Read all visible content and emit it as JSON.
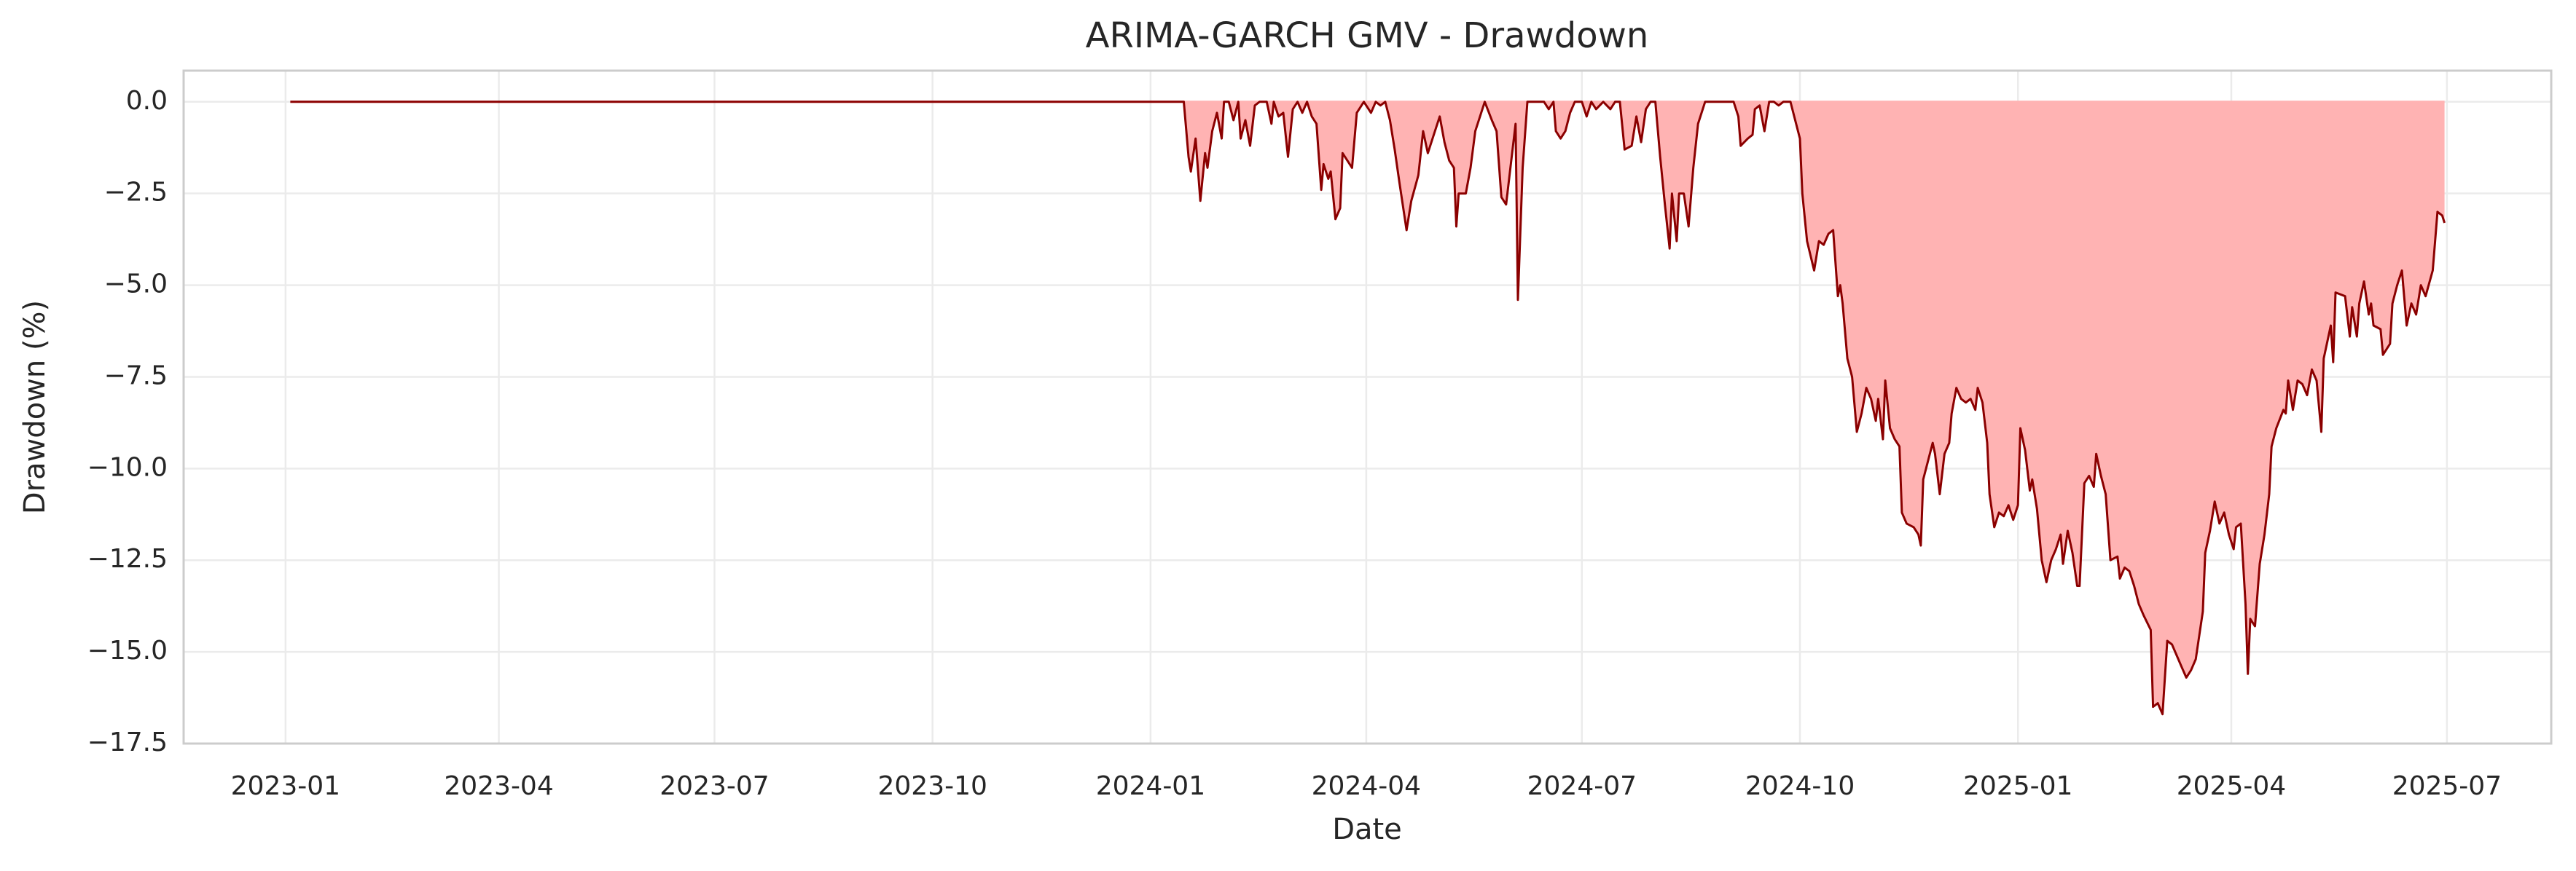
{
  "chart_data": {
    "type": "area",
    "title": "ARIMA-GARCH GMV - Drawdown",
    "x_label": "Date",
    "y_label": "Drawdown (%)",
    "xlim": [
      "2022-11-19",
      "2025-08-14"
    ],
    "xticks": [
      "2023-01",
      "2023-04",
      "2023-07",
      "2023-10",
      "2024-01",
      "2024-04",
      "2024-07",
      "2024-10",
      "2025-01",
      "2025-04",
      "2025-07"
    ],
    "ylim": [
      -17.5,
      0.85
    ],
    "yticks": [
      {
        "value": 0,
        "label": "0.0"
      },
      {
        "value": -2.5,
        "label": "−2.5"
      },
      {
        "value": -5,
        "label": "−5.0"
      },
      {
        "value": -7.5,
        "label": "−7.5"
      },
      {
        "value": -10,
        "label": "−10.0"
      },
      {
        "value": -12.5,
        "label": "−12.5"
      },
      {
        "value": -15,
        "label": "−15.0"
      },
      {
        "value": -17.5,
        "label": "−17.5"
      }
    ],
    "grid": true,
    "x": [
      "2023-01-03",
      "2024-01-15",
      "2024-01-17",
      "2024-01-18",
      "2024-01-20",
      "2024-01-22",
      "2024-01-24",
      "2024-01-25",
      "2024-01-27",
      "2024-01-29",
      "2024-01-31",
      "2024-02-01",
      "2024-02-03",
      "2024-02-05",
      "2024-02-07",
      "2024-02-08",
      "2024-02-10",
      "2024-02-12",
      "2024-02-14",
      "2024-02-16",
      "2024-02-19",
      "2024-02-21",
      "2024-02-22",
      "2024-02-24",
      "2024-02-26",
      "2024-02-28",
      "2024-03-01",
      "2024-03-03",
      "2024-03-05",
      "2024-03-07",
      "2024-03-09",
      "2024-03-11",
      "2024-03-13",
      "2024-03-14",
      "2024-03-16",
      "2024-03-17",
      "2024-03-19",
      "2024-03-21",
      "2024-03-22",
      "2024-03-26",
      "2024-03-28",
      "2024-03-31",
      "2024-04-03",
      "2024-04-05",
      "2024-04-07",
      "2024-04-09",
      "2024-04-11",
      "2024-04-13",
      "2024-04-15",
      "2024-04-18",
      "2024-04-20",
      "2024-04-23",
      "2024-04-25",
      "2024-04-27",
      "2024-04-29",
      "2024-05-02",
      "2024-05-04",
      "2024-05-06",
      "2024-05-08",
      "2024-05-09",
      "2024-05-10",
      "2024-05-13",
      "2024-05-15",
      "2024-05-17",
      "2024-05-19",
      "2024-05-21",
      "2024-05-24",
      "2024-05-26",
      "2024-05-28",
      "2024-05-30",
      "2024-06-01",
      "2024-06-03",
      "2024-06-04",
      "2024-06-06",
      "2024-06-08",
      "2024-06-11",
      "2024-06-15",
      "2024-06-17",
      "2024-06-19",
      "2024-06-20",
      "2024-06-22",
      "2024-06-24",
      "2024-06-26",
      "2024-06-28",
      "2024-07-01",
      "2024-07-03",
      "2024-07-05",
      "2024-07-07",
      "2024-07-10",
      "2024-07-13",
      "2024-07-15",
      "2024-07-17",
      "2024-07-19",
      "2024-07-22",
      "2024-07-24",
      "2024-07-26",
      "2024-07-28",
      "2024-07-30",
      "2024-08-01",
      "2024-08-03",
      "2024-08-05",
      "2024-08-07",
      "2024-08-08",
      "2024-08-10",
      "2024-08-11",
      "2024-08-13",
      "2024-08-15",
      "2024-08-17",
      "2024-08-19",
      "2024-08-22",
      "2024-08-27",
      "2024-09-03",
      "2024-09-05",
      "2024-09-06",
      "2024-09-09",
      "2024-09-11",
      "2024-09-12",
      "2024-09-14",
      "2024-09-16",
      "2024-09-18",
      "2024-09-20",
      "2024-09-22",
      "2024-09-24",
      "2024-09-27",
      "2024-10-01",
      "2024-10-02",
      "2024-10-04",
      "2024-10-07",
      "2024-10-09",
      "2024-10-11",
      "2024-10-13",
      "2024-10-15",
      "2024-10-17",
      "2024-10-18",
      "2024-10-19",
      "2024-10-21",
      "2024-10-23",
      "2024-10-25",
      "2024-10-27",
      "2024-10-29",
      "2024-10-31",
      "2024-11-02",
      "2024-11-03",
      "2024-11-05",
      "2024-11-06",
      "2024-11-08",
      "2024-11-10",
      "2024-11-12",
      "2024-11-13",
      "2024-11-15",
      "2024-11-18",
      "2024-11-20",
      "2024-11-21",
      "2024-11-22",
      "2024-11-24",
      "2024-11-26",
      "2024-11-27",
      "2024-11-29",
      "2024-12-01",
      "2024-12-03",
      "2024-12-04",
      "2024-12-06",
      "2024-12-08",
      "2024-12-10",
      "2024-12-12",
      "2024-12-14",
      "2024-12-15",
      "2024-12-17",
      "2024-12-19",
      "2024-12-20",
      "2024-12-22",
      "2024-12-24",
      "2024-12-26",
      "2024-12-28",
      "2024-12-30",
      "2025-01-01",
      "2025-01-02",
      "2025-01-04",
      "2025-01-06",
      "2025-01-07",
      "2025-01-09",
      "2025-01-11",
      "2025-01-13",
      "2025-01-15",
      "2025-01-17",
      "2025-01-19",
      "2025-01-20",
      "2025-01-22",
      "2025-01-24",
      "2025-01-26",
      "2025-01-27",
      "2025-01-29",
      "2025-01-31",
      "2025-02-02",
      "2025-02-03",
      "2025-02-05",
      "2025-02-07",
      "2025-02-09",
      "2025-02-12",
      "2025-02-13",
      "2025-02-15",
      "2025-02-17",
      "2025-02-19",
      "2025-02-21",
      "2025-02-23",
      "2025-02-26",
      "2025-02-27",
      "2025-03-01",
      "2025-03-03",
      "2025-03-05",
      "2025-03-07",
      "2025-03-09",
      "2025-03-11",
      "2025-03-13",
      "2025-03-15",
      "2025-03-17",
      "2025-03-20",
      "2025-03-21",
      "2025-03-23",
      "2025-03-25",
      "2025-03-27",
      "2025-03-29",
      "2025-03-31",
      "2025-04-02",
      "2025-04-03",
      "2025-04-05",
      "2025-04-07",
      "2025-04-08",
      "2025-04-09",
      "2025-04-11",
      "2025-04-13",
      "2025-04-15",
      "2025-04-17",
      "2025-04-18",
      "2025-04-20",
      "2025-04-23",
      "2025-04-24",
      "2025-04-25",
      "2025-04-27",
      "2025-04-29",
      "2025-05-01",
      "2025-05-03",
      "2025-05-05",
      "2025-05-07",
      "2025-05-09",
      "2025-05-10",
      "2025-05-13",
      "2025-05-14",
      "2025-05-15",
      "2025-05-19",
      "2025-05-21",
      "2025-05-22",
      "2025-05-24",
      "2025-05-25",
      "2025-05-27",
      "2025-05-29",
      "2025-05-30",
      "2025-05-31",
      "2025-06-03",
      "2025-06-04",
      "2025-06-07",
      "2025-06-08",
      "2025-06-10",
      "2025-06-12",
      "2025-06-14",
      "2025-06-16",
      "2025-06-18",
      "2025-06-20",
      "2025-06-22",
      "2025-06-25",
      "2025-06-27",
      "2025-06-29",
      "2025-06-30"
    ],
    "values": [
      0,
      0,
      -1.5,
      -1.9,
      -1.0,
      -2.7,
      -1.4,
      -1.8,
      -0.8,
      -0.3,
      -1.0,
      0,
      0,
      -0.5,
      0,
      -1.0,
      -0.5,
      -1.2,
      -0.1,
      0,
      0,
      -0.6,
      0,
      -0.4,
      -0.3,
      -1.5,
      -0.2,
      0,
      -0.3,
      0,
      -0.4,
      -0.6,
      -2.4,
      -1.7,
      -2.1,
      -1.9,
      -3.2,
      -2.9,
      -1.4,
      -1.8,
      -0.3,
      0,
      -0.3,
      0,
      -0.1,
      0,
      -0.5,
      -1.3,
      -2.2,
      -3.5,
      -2.7,
      -2.0,
      -0.8,
      -1.4,
      -1.0,
      -0.4,
      -1.1,
      -1.6,
      -1.8,
      -3.4,
      -2.5,
      -2.5,
      -1.8,
      -0.8,
      -0.4,
      0,
      -0.5,
      -0.8,
      -2.6,
      -2.8,
      -1.7,
      -0.6,
      -5.4,
      -1.8,
      0,
      0,
      0,
      -0.2,
      0,
      -0.8,
      -1.0,
      -0.8,
      -0.3,
      0,
      0,
      -0.4,
      0,
      -0.2,
      0,
      -0.2,
      0,
      0,
      -1.3,
      -1.2,
      -0.4,
      -1.1,
      -0.2,
      0,
      0,
      -1.5,
      -2.8,
      -4.0,
      -2.5,
      -3.8,
      -2.5,
      -2.5,
      -3.4,
      -1.8,
      -0.6,
      0,
      0,
      0,
      -0.4,
      -1.2,
      -1.0,
      -0.9,
      -0.2,
      -0.1,
      -0.8,
      0,
      0,
      -0.1,
      0,
      0,
      -1.0,
      -2.5,
      -3.8,
      -4.6,
      -3.8,
      -3.9,
      -3.6,
      -3.5,
      -5.3,
      -5.0,
      -5.5,
      -7.0,
      -7.5,
      -9.0,
      -8.5,
      -7.8,
      -8.1,
      -8.7,
      -8.1,
      -9.2,
      -7.6,
      -8.9,
      -9.2,
      -9.4,
      -11.2,
      -11.5,
      -11.6,
      -11.8,
      -12.1,
      -10.3,
      -9.8,
      -9.3,
      -9.6,
      -10.7,
      -9.6,
      -9.3,
      -8.5,
      -7.8,
      -8.1,
      -8.2,
      -8.1,
      -8.4,
      -7.8,
      -8.2,
      -9.3,
      -10.7,
      -11.6,
      -11.2,
      -11.3,
      -11.0,
      -11.4,
      -11.0,
      -8.9,
      -9.5,
      -10.6,
      -10.3,
      -11.1,
      -12.5,
      -13.1,
      -12.5,
      -12.2,
      -11.8,
      -12.6,
      -11.7,
      -12.3,
      -13.2,
      -13.2,
      -10.4,
      -10.2,
      -10.5,
      -9.6,
      -10.2,
      -10.7,
      -12.5,
      -12.4,
      -13.0,
      -12.7,
      -12.8,
      -13.2,
      -13.7,
      -14.0,
      -14.4,
      -16.5,
      -16.4,
      -16.7,
      -14.7,
      -14.8,
      -15.1,
      -15.4,
      -15.7,
      -15.5,
      -15.2,
      -13.9,
      -12.3,
      -11.7,
      -10.9,
      -11.5,
      -11.2,
      -11.8,
      -12.2,
      -11.6,
      -11.5,
      -13.7,
      -15.6,
      -14.1,
      -14.3,
      -12.6,
      -11.8,
      -10.7,
      -9.4,
      -8.9,
      -8.4,
      -8.5,
      -7.6,
      -8.4,
      -7.6,
      -7.7,
      -8.0,
      -7.3,
      -7.6,
      -9.0,
      -7.0,
      -6.1,
      -7.1,
      -5.2,
      -5.3,
      -6.4,
      -5.6,
      -6.4,
      -5.5,
      -4.9,
      -5.8,
      -5.5,
      -6.1,
      -6.2,
      -6.9,
      -6.6,
      -5.5,
      -5.0,
      -4.6,
      -6.1,
      -5.5,
      -5.8,
      -5.0,
      -5.3,
      -4.6,
      -3.0,
      -3.1,
      -3.3
    ],
    "color": "#8b0000",
    "area_color": "#ffb3b3"
  }
}
